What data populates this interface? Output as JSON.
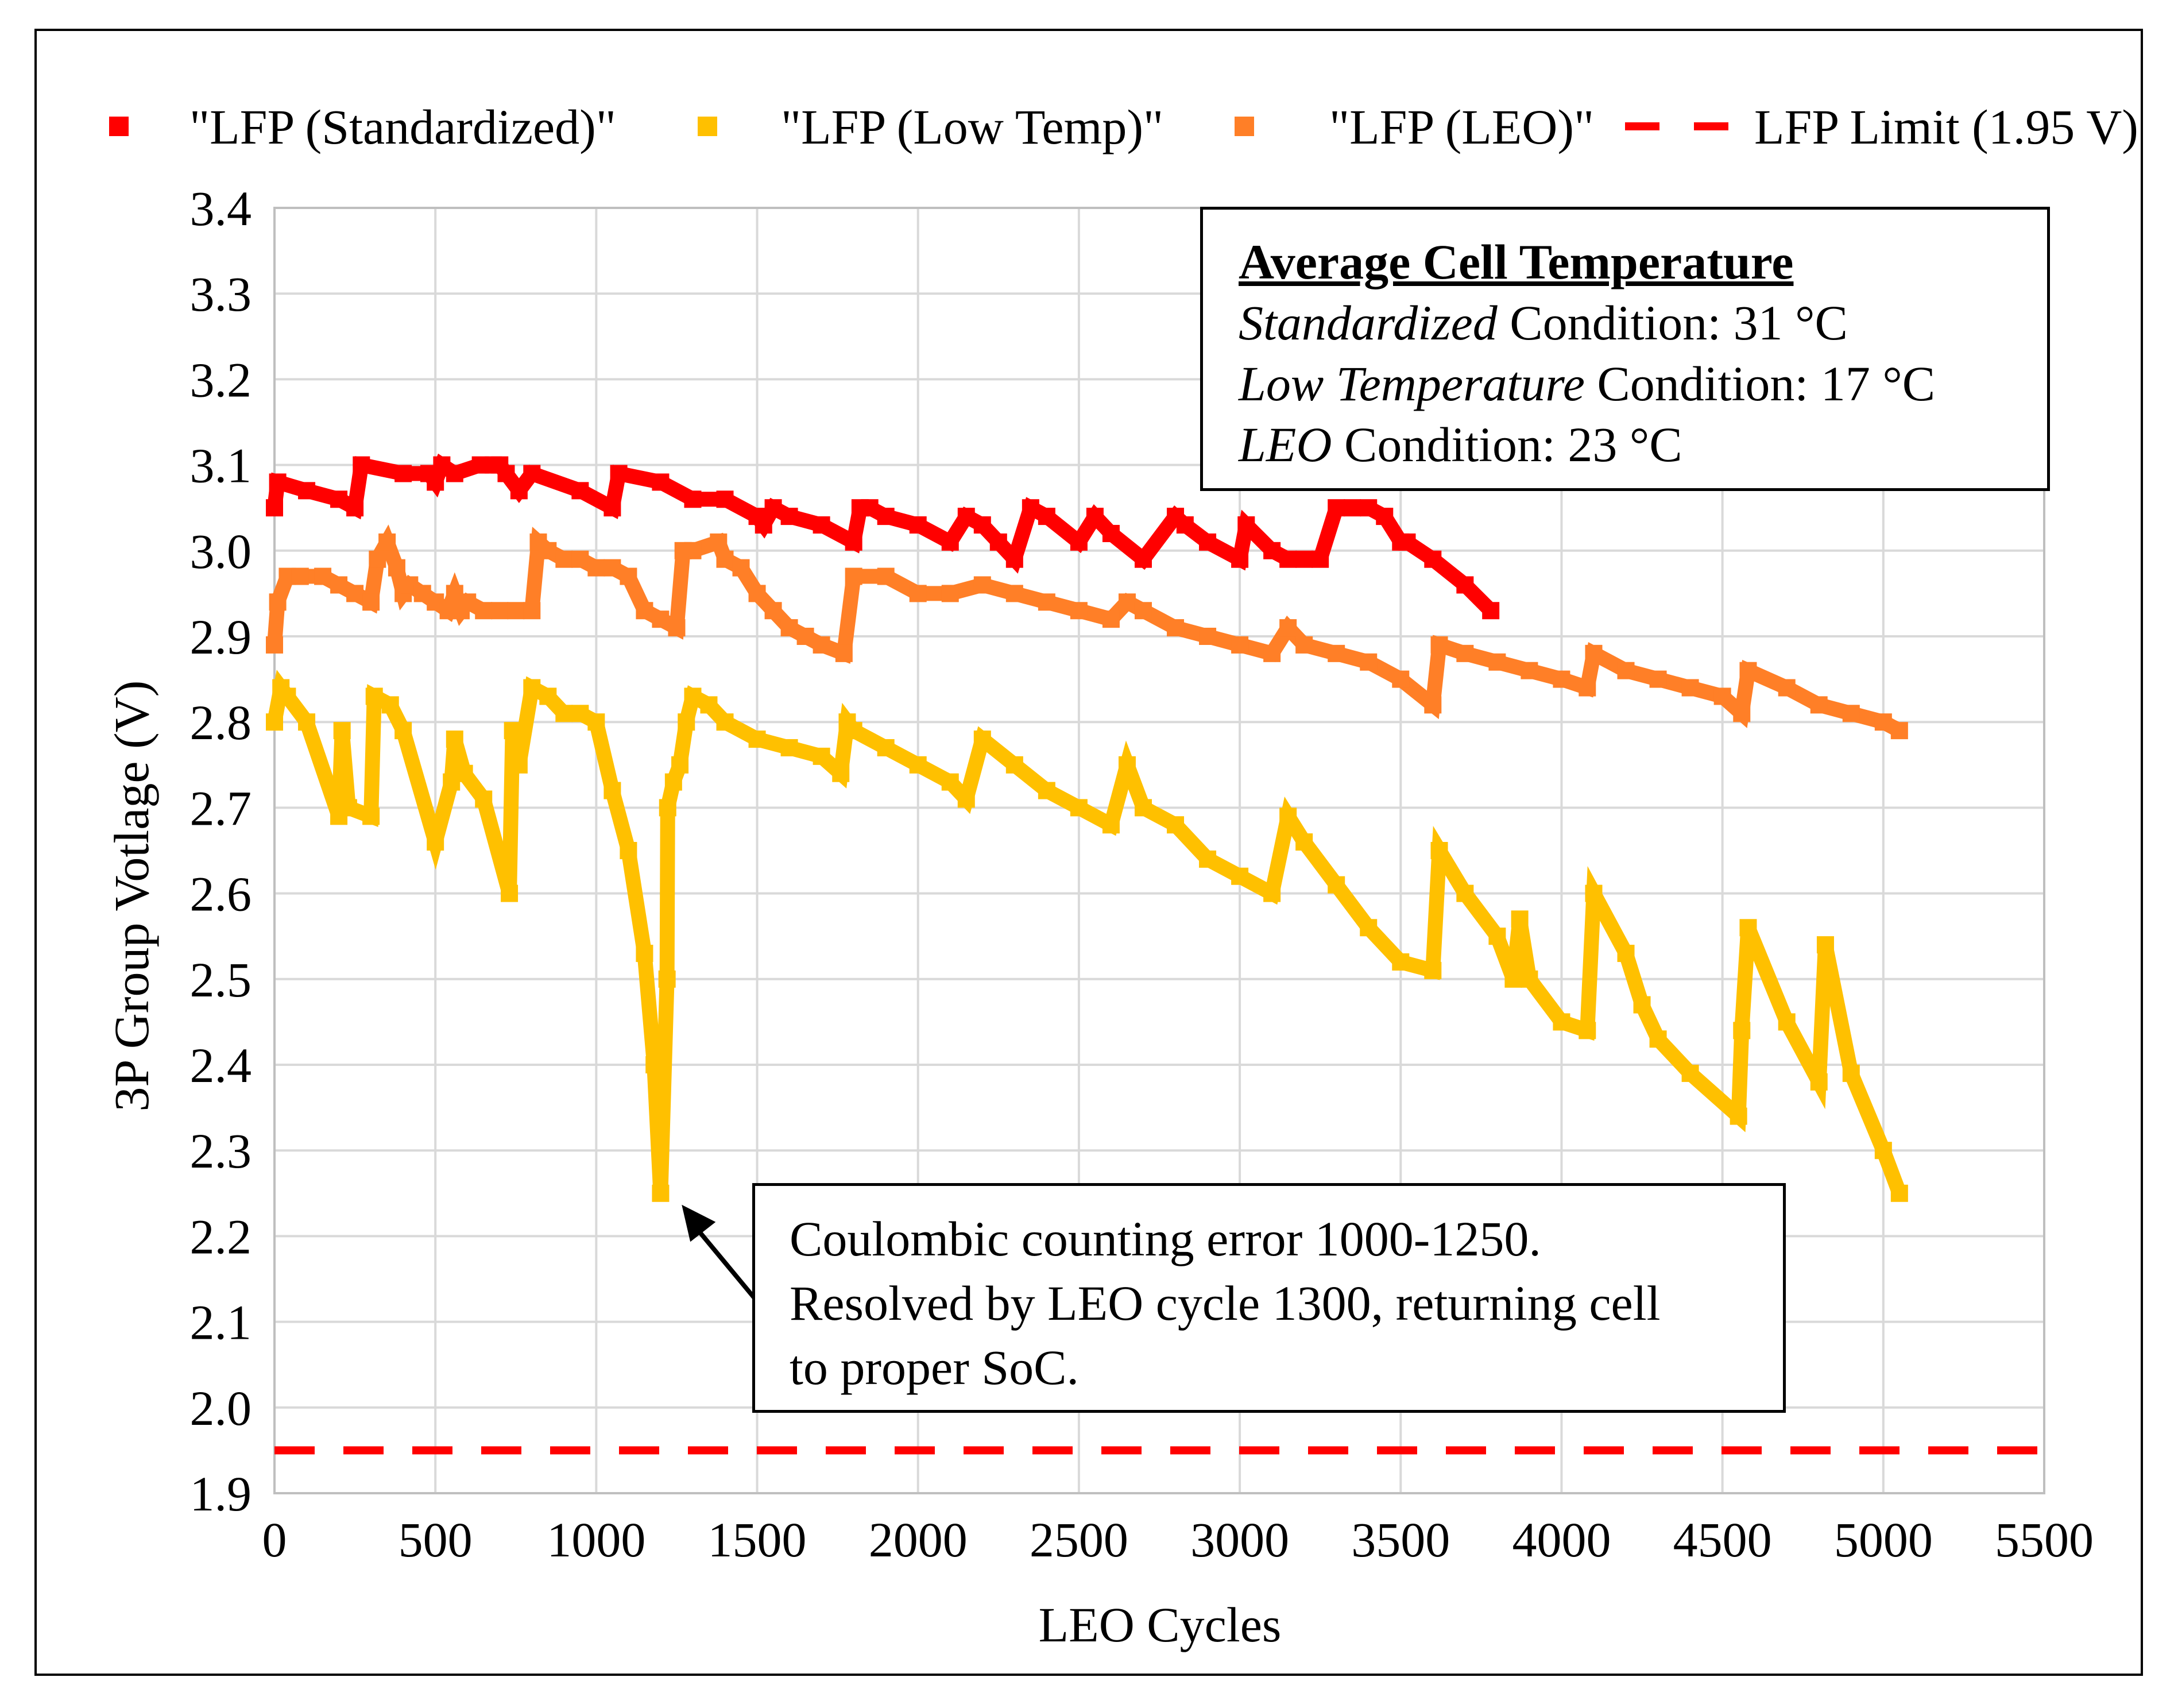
{
  "chart_data": {
    "type": "line",
    "title": "",
    "xlabel": "LEO Cycles",
    "ylabel": "3P Group Votlage (V)",
    "xlim": [
      0,
      5500
    ],
    "ylim": [
      1.9,
      3.4
    ],
    "xticks": [
      0,
      500,
      1000,
      1500,
      2000,
      2500,
      3000,
      3500,
      4000,
      4500,
      5000,
      5500
    ],
    "yticks": [
      "1.9",
      "2.0",
      "2.1",
      "2.2",
      "2.3",
      "2.4",
      "2.5",
      "2.6",
      "2.7",
      "2.8",
      "2.9",
      "3.0",
      "3.1",
      "3.2",
      "3.3",
      "3.4"
    ],
    "grid": true,
    "legend_position": "top",
    "series": [
      {
        "name": "\"LFP (Standardized)\"",
        "color": "#ff0000",
        "marker": "square",
        "x": [
          0,
          10,
          100,
          200,
          250,
          270,
          400,
          480,
          500,
          520,
          560,
          640,
          680,
          700,
          720,
          760,
          800,
          950,
          1050,
          1070,
          1200,
          1300,
          1400,
          1500,
          1520,
          1550,
          1600,
          1700,
          1800,
          1820,
          1850,
          1900,
          2000,
          2100,
          2150,
          2200,
          2250,
          2300,
          2350,
          2400,
          2500,
          2550,
          2600,
          2700,
          2800,
          2830,
          2900,
          3000,
          3020,
          3100,
          3150,
          3200,
          3250,
          3300,
          3350,
          3400,
          3450,
          3500,
          3520,
          3600,
          3700,
          3780
        ],
        "y": [
          3.05,
          3.08,
          3.07,
          3.06,
          3.05,
          3.1,
          3.09,
          3.09,
          3.08,
          3.1,
          3.09,
          3.1,
          3.1,
          3.1,
          3.09,
          3.07,
          3.09,
          3.07,
          3.05,
          3.09,
          3.08,
          3.06,
          3.06,
          3.04,
          3.03,
          3.05,
          3.04,
          3.03,
          3.01,
          3.05,
          3.05,
          3.04,
          3.03,
          3.01,
          3.04,
          3.03,
          3.01,
          2.99,
          3.05,
          3.04,
          3.01,
          3.04,
          3.02,
          2.99,
          3.04,
          3.03,
          3.01,
          2.99,
          3.03,
          3.0,
          2.99,
          2.99,
          2.99,
          3.05,
          3.05,
          3.05,
          3.04,
          3.01,
          3.01,
          2.99,
          2.96,
          2.93
        ]
      },
      {
        "name": "\"LFP (Low Temp)\"",
        "color": "#ffc000",
        "marker": "square",
        "x": [
          0,
          20,
          40,
          100,
          200,
          210,
          230,
          300,
          310,
          360,
          400,
          500,
          550,
          560,
          590,
          650,
          730,
          740,
          760,
          800,
          850,
          900,
          950,
          1000,
          1050,
          1100,
          1150,
          1180,
          1200,
          1220,
          1222,
          1240,
          1260,
          1280,
          1300,
          1350,
          1400,
          1500,
          1600,
          1700,
          1760,
          1780,
          1800,
          1900,
          2000,
          2100,
          2150,
          2200,
          2300,
          2400,
          2500,
          2600,
          2650,
          2700,
          2800,
          2900,
          3000,
          3100,
          3150,
          3200,
          3300,
          3400,
          3500,
          3600,
          3620,
          3700,
          3800,
          3850,
          3870,
          3900,
          4000,
          4080,
          4100,
          4200,
          4250,
          4300,
          4400,
          4550,
          4560,
          4580,
          4700,
          4800,
          4820,
          4900,
          5000,
          5050
        ],
        "y": [
          2.8,
          2.84,
          2.83,
          2.8,
          2.69,
          2.79,
          2.7,
          2.69,
          2.83,
          2.82,
          2.79,
          2.66,
          2.73,
          2.78,
          2.74,
          2.71,
          2.6,
          2.79,
          2.75,
          2.84,
          2.83,
          2.81,
          2.81,
          2.8,
          2.72,
          2.65,
          2.53,
          2.4,
          2.25,
          2.5,
          2.7,
          2.73,
          2.75,
          2.8,
          2.83,
          2.82,
          2.8,
          2.78,
          2.77,
          2.76,
          2.74,
          2.8,
          2.79,
          2.77,
          2.75,
          2.73,
          2.71,
          2.78,
          2.75,
          2.72,
          2.7,
          2.68,
          2.75,
          2.7,
          2.68,
          2.64,
          2.62,
          2.6,
          2.69,
          2.66,
          2.61,
          2.56,
          2.52,
          2.51,
          2.65,
          2.6,
          2.55,
          2.5,
          2.57,
          2.5,
          2.45,
          2.44,
          2.6,
          2.53,
          2.47,
          2.43,
          2.39,
          2.34,
          2.44,
          2.56,
          2.45,
          2.38,
          2.54,
          2.39,
          2.3,
          2.25
        ]
      },
      {
        "name": "\"LFP (LEO)\"",
        "color": "#ff7f27",
        "marker": "square",
        "x": [
          0,
          10,
          40,
          80,
          150,
          200,
          250,
          300,
          320,
          350,
          380,
          400,
          420,
          460,
          500,
          540,
          560,
          580,
          600,
          650,
          700,
          750,
          800,
          820,
          850,
          900,
          950,
          1000,
          1050,
          1100,
          1150,
          1200,
          1250,
          1270,
          1300,
          1380,
          1400,
          1450,
          1500,
          1550,
          1600,
          1650,
          1700,
          1770,
          1800,
          1900,
          2000,
          2100,
          2200,
          2300,
          2400,
          2500,
          2600,
          2650,
          2700,
          2800,
          2900,
          3000,
          3100,
          3150,
          3200,
          3300,
          3400,
          3500,
          3600,
          3620,
          3700,
          3800,
          3900,
          4000,
          4080,
          4100,
          4200,
          4300,
          4400,
          4500,
          4560,
          4580,
          4700,
          4800,
          4900,
          5000,
          5050
        ],
        "y": [
          2.89,
          2.94,
          2.97,
          2.97,
          2.97,
          2.96,
          2.95,
          2.94,
          2.99,
          3.01,
          2.98,
          2.95,
          2.96,
          2.95,
          2.94,
          2.93,
          2.95,
          2.93,
          2.94,
          2.93,
          2.93,
          2.93,
          2.93,
          3.01,
          3.0,
          2.99,
          2.99,
          2.98,
          2.98,
          2.97,
          2.93,
          2.92,
          2.91,
          3.0,
          3.0,
          3.01,
          2.99,
          2.98,
          2.95,
          2.93,
          2.91,
          2.9,
          2.89,
          2.88,
          2.97,
          2.97,
          2.95,
          2.95,
          2.96,
          2.95,
          2.94,
          2.93,
          2.92,
          2.94,
          2.93,
          2.91,
          2.9,
          2.89,
          2.88,
          2.91,
          2.89,
          2.88,
          2.87,
          2.85,
          2.82,
          2.89,
          2.88,
          2.87,
          2.86,
          2.85,
          2.84,
          2.88,
          2.86,
          2.85,
          2.84,
          2.83,
          2.81,
          2.86,
          2.84,
          2.82,
          2.81,
          2.8,
          2.79
        ]
      },
      {
        "name": "LFP Limit (1.95 V)",
        "color": "#ff0000",
        "style": "dashed",
        "x": [
          0,
          5500
        ],
        "y": [
          1.95,
          1.95
        ]
      }
    ],
    "annotations": [
      {
        "title": "Average Cell Temperature",
        "lines": [
          {
            "italic": "Standardized",
            "rest": " Condition: 31 °C"
          },
          {
            "italic": "Low Temperature",
            "rest": " Condition: 17 °C"
          },
          {
            "italic": "LEO",
            "rest": " Condition: 23 °C"
          }
        ]
      },
      {
        "lines": [
          "Coulombic counting error 1000-1250.",
          "Resolved by LEO cycle 1300, returning cell",
          "to proper SoC."
        ],
        "arrow_to": {
          "x": 1230,
          "y": 2.25
        }
      }
    ]
  }
}
